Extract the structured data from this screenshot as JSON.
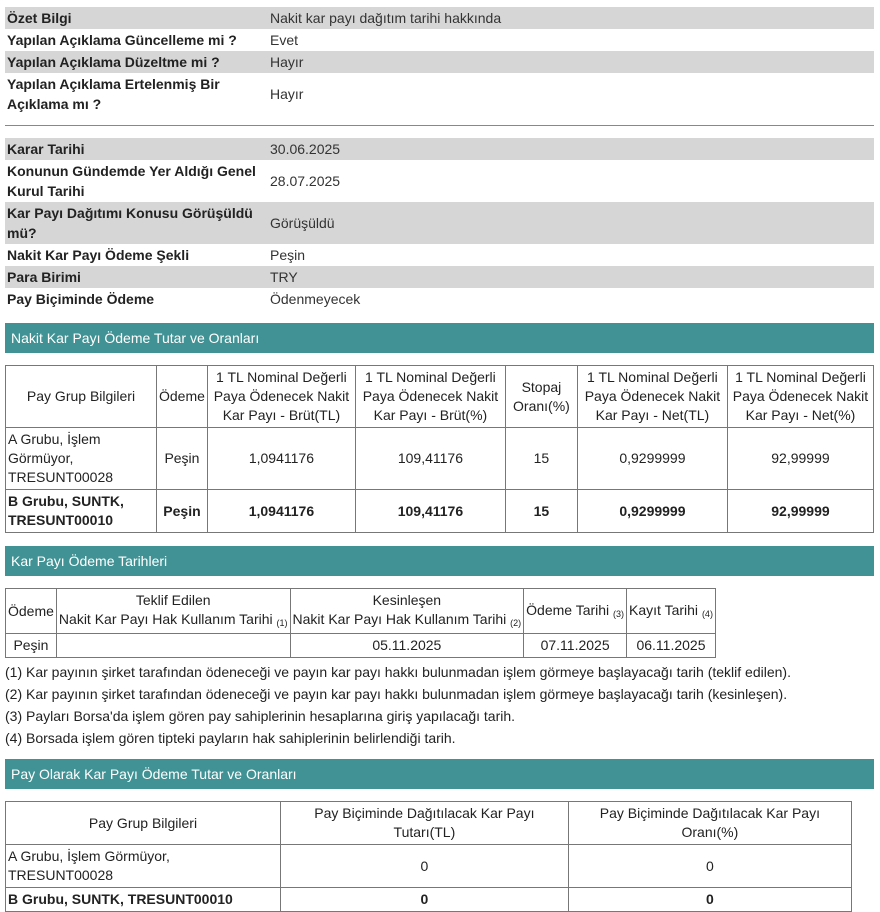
{
  "summary": [
    {
      "label": "Özet Bilgi",
      "value": "Nakit kar payı dağıtım tarihi hakkında"
    },
    {
      "label": "Yapılan Açıklama Güncelleme mi ?",
      "value": "Evet"
    },
    {
      "label": "Yapılan Açıklama Düzeltme mi ?",
      "value": "Hayır"
    },
    {
      "label": "Yapılan Açıklama Ertelenmiş Bir Açıklama mı ?",
      "value": "Hayır"
    }
  ],
  "details": [
    {
      "label": "Karar Tarihi",
      "value": "30.06.2025"
    },
    {
      "label": "Konunun Gündemde Yer Aldığı Genel Kurul Tarihi",
      "value": "28.07.2025"
    },
    {
      "label": "Kar Payı Dağıtımı Konusu Görüşüldü mü?",
      "value": "Görüşüldü"
    },
    {
      "label": "Nakit Kar Payı Ödeme Şekli",
      "value": "Peşin"
    },
    {
      "label": "Para Birimi",
      "value": "TRY"
    },
    {
      "label": "Pay Biçiminde Ödeme",
      "value": "Ödenmeyecek"
    }
  ],
  "cash": {
    "title": "Nakit Kar Payı Ödeme Tutar ve Oranları",
    "headers": [
      "Pay Grup Bilgileri",
      "Ödeme",
      "1 TL Nominal Değerli Paya Ödenecek Nakit Kar Payı - Brüt(TL)",
      "1 TL Nominal Değerli Paya Ödenecek Nakit Kar Payı - Brüt(%)",
      "Stopaj Oranı(%)",
      "1 TL Nominal Değerli Paya Ödenecek Nakit Kar Payı - Net(TL)",
      "1 TL Nominal Değerli Paya Ödenecek Nakit Kar Payı - Net(%)"
    ],
    "rows": [
      [
        "A Grubu, İşlem Görmüyor, TRESUNT00028",
        "Peşin",
        "1,0941176",
        "109,41176",
        "15",
        "0,9299999",
        "92,99999"
      ],
      [
        "B Grubu, SUNTK, TRESUNT00010",
        "Peşin",
        "1,0941176",
        "109,41176",
        "15",
        "0,9299999",
        "92,99999"
      ]
    ]
  },
  "dates": {
    "title": "Kar Payı Ödeme Tarihleri",
    "h_odeme": "Ödeme",
    "h_teklif_1": "Teklif Edilen",
    "h_teklif_2": "Nakit Kar Payı Hak Kullanım Tarihi",
    "h_teklif_n": "(1)",
    "h_kesin_1": "Kesinleşen",
    "h_kesin_2": "Nakit Kar Payı Hak Kullanım Tarihi",
    "h_kesin_n": "(2)",
    "h_odeme_tarihi": "Ödeme Tarihi",
    "h_odeme_tarihi_n": "(3)",
    "h_kayit": "Kayıt Tarihi",
    "h_kayit_n": "(4)",
    "row": {
      "odeme": "Peşin",
      "teklif": "",
      "kesin": "05.11.2025",
      "odeme_tarihi": "07.11.2025",
      "kayit": "06.11.2025"
    },
    "notes": [
      "(1) Kar payının şirket tarafından ödeneceği ve payın kar payı hakkı bulunmadan işlem görmeye başlayacağı tarih (teklif edilen).",
      "(2) Kar payının şirket tarafından ödeneceği ve payın kar payı hakkı bulunmadan işlem görmeye başlayacağı tarih (kesinleşen).",
      "(3) Payları Borsa'da işlem gören pay sahiplerinin hesaplarına giriş yapılacağı tarih.",
      "(4) Borsada işlem gören tipteki payların hak sahiplerinin belirlendiği tarih."
    ]
  },
  "stock": {
    "title": "Pay Olarak Kar Payı Ödeme Tutar ve Oranları",
    "headers": [
      "Pay Grup Bilgileri",
      "Pay Biçiminde Dağıtılacak Kar Payı Tutarı(TL)",
      "Pay Biçiminde Dağıtılacak Kar Payı Oranı(%)"
    ],
    "rows": [
      [
        "A Grubu, İşlem Görmüyor, TRESUNT00028",
        "0",
        "0"
      ],
      [
        "B Grubu, SUNTK, TRESUNT00010",
        "0",
        "0"
      ]
    ]
  }
}
